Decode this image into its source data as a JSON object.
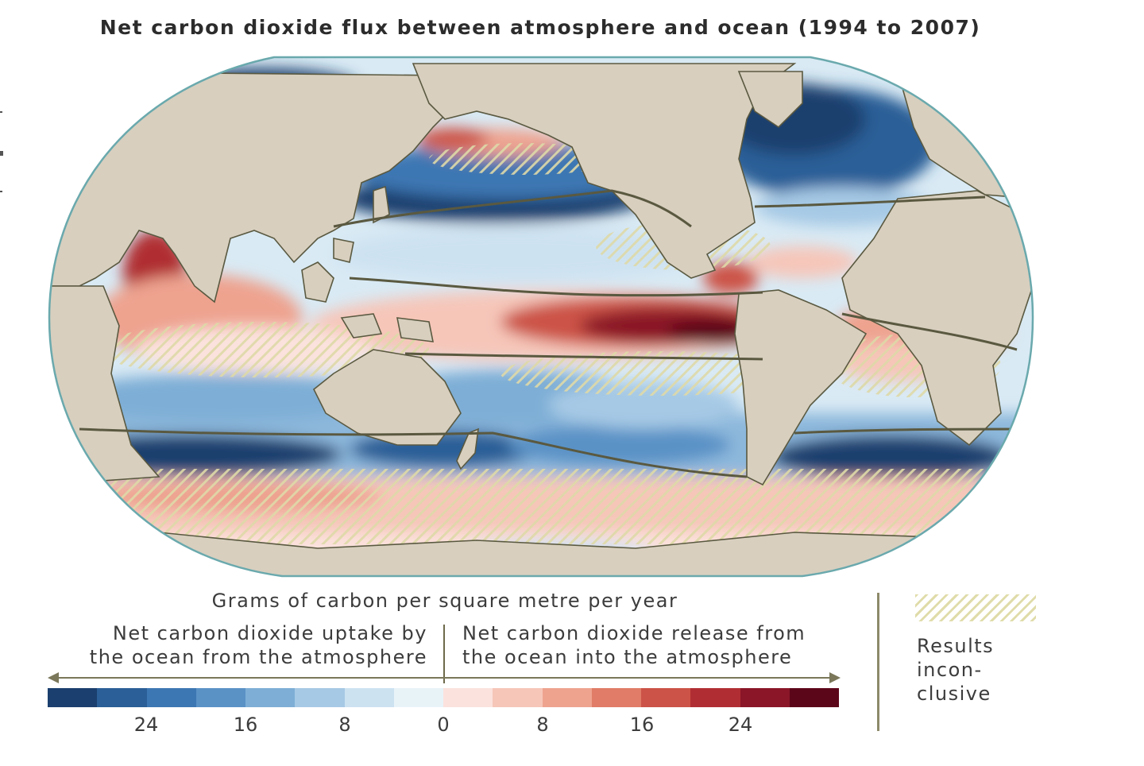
{
  "title": "Net carbon dioxide flux between atmosphere and ocean (1994 to 2007)",
  "legend": {
    "unit_label": "Grams of carbon per square metre per year",
    "uptake_label": [
      "Net carbon dioxide uptake by",
      "the ocean from the atmosphere"
    ],
    "release_label": [
      "Net carbon dioxide release from",
      "the ocean into the atmosphere"
    ],
    "tick_labels": [
      "24",
      "16",
      "8",
      "0",
      "8",
      "16",
      "24"
    ],
    "scale_colors": [
      "#1b3f6e",
      "#2a5f97",
      "#3d77b3",
      "#5a92c6",
      "#7eaed6",
      "#a6c9e5",
      "#cde2f1",
      "#e8f3f8",
      "#fbe2dd",
      "#f6c6b9",
      "#eea38f",
      "#e07c67",
      "#cc5347",
      "#b02e33",
      "#8a1628",
      "#5c0619"
    ],
    "inconclusive_label": [
      "Results",
      "incon-",
      "clusive"
    ]
  },
  "colors": {
    "land": "#d8cfbf",
    "outline": "#6aa9ad",
    "coast": "#5a5940",
    "hatch": "#ded9a8"
  }
}
